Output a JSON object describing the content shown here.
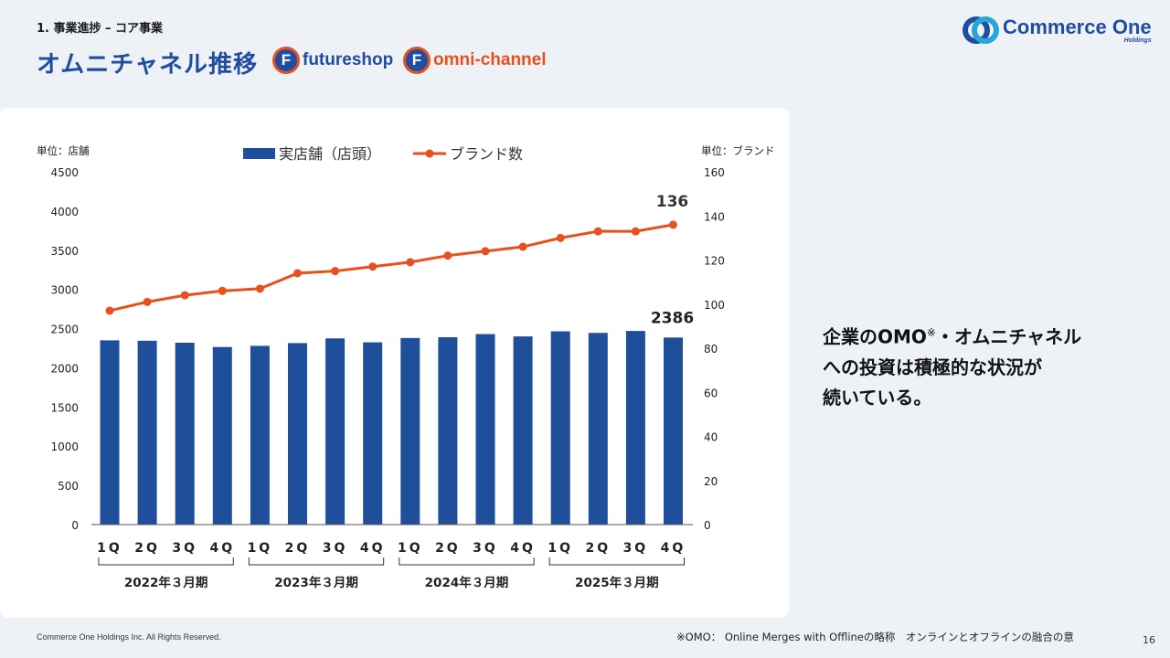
{
  "header": {
    "breadcrumb": "1. 事業進捗 – コア事業",
    "title": "オムニチャネル推移",
    "brands": [
      {
        "icon_letter": "F",
        "name": "futureshop",
        "name_color": "#1f4ea0"
      },
      {
        "icon_letter": "F",
        "name": "omni-channel",
        "name_color": "#e8501e"
      }
    ],
    "logo_main": "Commerce One",
    "logo_sub": "Holdings"
  },
  "colors": {
    "bar": "#1f4e9a",
    "line": "#e8501e",
    "title": "#1f4ea0",
    "background": "#eef2f7"
  },
  "chart_data": {
    "type": "bar",
    "left_unit": "単位：店舗",
    "right_unit": "単位：ブランド",
    "categories": [
      "1Q",
      "2Q",
      "3Q",
      "4Q",
      "1Q",
      "2Q",
      "3Q",
      "4Q",
      "1Q",
      "2Q",
      "3Q",
      "4Q",
      "1Q",
      "2Q",
      "3Q",
      "4Q"
    ],
    "period_groups": [
      "2022年３月期",
      "2023年３月期",
      "2024年３月期",
      "2025年３月期"
    ],
    "series": [
      {
        "name": "実店舗（店頭）",
        "type": "bar",
        "axis": "left",
        "values": [
          2350,
          2345,
          2320,
          2265,
          2280,
          2315,
          2375,
          2325,
          2380,
          2390,
          2430,
          2400,
          2465,
          2445,
          2470,
          2386
        ]
      },
      {
        "name": "ブランド数",
        "type": "line",
        "axis": "right",
        "values": [
          97,
          101,
          104,
          106,
          107,
          114,
          115,
          117,
          119,
          122,
          124,
          126,
          130,
          133,
          133,
          136
        ]
      }
    ],
    "y_left_ticks": [
      0,
      500,
      1000,
      1500,
      2000,
      2500,
      3000,
      3500,
      4000,
      4500
    ],
    "y_right_ticks": [
      0,
      20,
      40,
      60,
      80,
      100,
      120,
      140,
      160
    ],
    "ylim_left": [
      0,
      4500
    ],
    "ylim_right": [
      0,
      160
    ],
    "labels": {
      "last_bar": "2386",
      "last_point": "136"
    },
    "legend_position": "top-center",
    "grid": false
  },
  "callout": {
    "line1a": "企業のOMO",
    "mark": "※",
    "line1b": "・オムニチャネル",
    "line2": "への投資は積極的な状況が",
    "line3": "続いている。"
  },
  "footer": {
    "copyright": "Commerce One Holdings Inc. All Rights Reserved.",
    "note": "※OMO： Online Merges with Offlineの略称　オンラインとオフラインの融合の意",
    "page": "16"
  }
}
